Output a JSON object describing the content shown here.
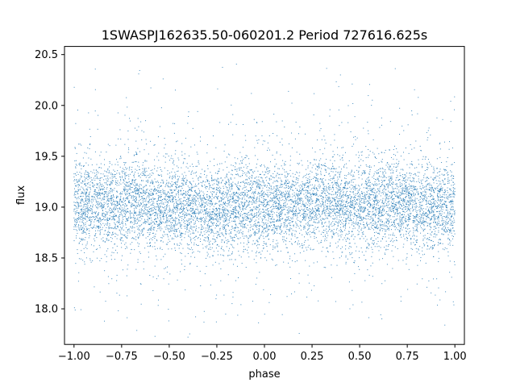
{
  "chart_data": {
    "type": "scatter",
    "title": "1SWASPJ162635.50-060201.2 Period 727616.625s",
    "xlabel": "phase",
    "ylabel": "flux",
    "xlim": [
      -1.05,
      1.05
    ],
    "ylim": [
      17.65,
      20.58
    ],
    "xticks": [
      -1.0,
      -0.75,
      -0.5,
      -0.25,
      0.0,
      0.25,
      0.5,
      0.75,
      1.0
    ],
    "xtick_labels": [
      "−1.00",
      "−0.75",
      "−0.50",
      "−0.25",
      "0.00",
      "0.25",
      "0.50",
      "0.75",
      "1.00"
    ],
    "yticks": [
      18.0,
      18.5,
      19.0,
      19.5,
      20.0,
      20.5
    ],
    "ytick_labels": [
      "18.0",
      "18.5",
      "19.0",
      "19.5",
      "20.0",
      "20.5"
    ],
    "grid": false,
    "marker_color": "#1f77b4",
    "series": [
      {
        "phase_range": [
          -1.0,
          1.0
        ],
        "flux_center": 19.0,
        "flux_core_range": [
          18.5,
          19.5
        ],
        "flux_outlier_range": [
          17.7,
          20.45
        ],
        "x_sample": [
          -1.0,
          -0.9,
          -0.8,
          -0.7,
          -0.6,
          -0.5,
          -0.4,
          -0.3,
          -0.2,
          -0.1,
          0.0,
          0.1,
          0.2,
          0.3,
          0.4,
          0.5,
          0.6,
          0.7,
          0.8,
          0.9,
          1.0
        ],
        "y_sample": [
          19.02,
          19.03,
          18.99,
          19.08,
          19.02,
          19.04,
          19.0,
          18.96,
          18.98,
          19.02,
          19.0,
          19.02,
          19.0,
          19.08,
          19.04,
          19.01,
          19.05,
          19.04,
          18.98,
          19.03,
          19.02
        ]
      }
    ]
  }
}
